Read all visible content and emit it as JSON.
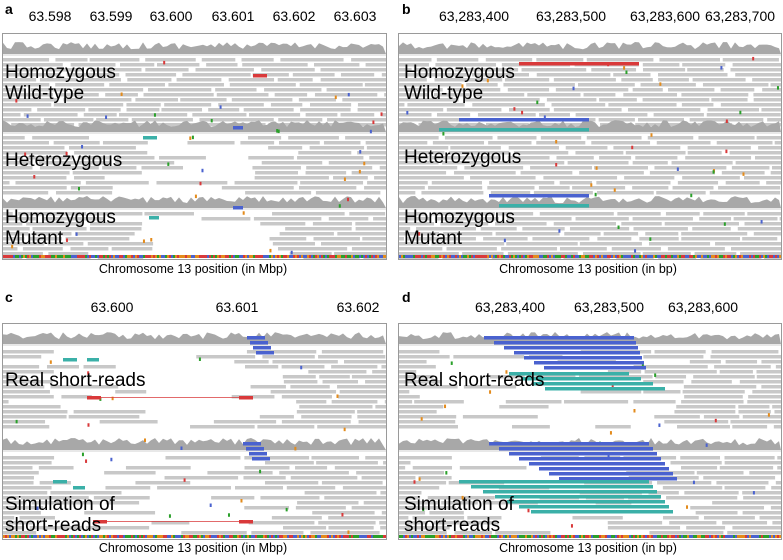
{
  "panels": [
    {
      "id": "a",
      "letter": "a",
      "ticks": [
        "63.598",
        "63.599",
        "63.600",
        "63.601",
        "63.602",
        "63.603"
      ],
      "labels": [
        "Homozygous\nWild-type",
        "Heterozygous",
        "Homozygous\nMutant"
      ],
      "xlabel": "Chromosome 13 position (in Mbp)"
    },
    {
      "id": "b",
      "letter": "b",
      "ticks": [
        "63,283,400",
        "63,283,500",
        "63,283,600",
        "63,283,700"
      ],
      "labels": [
        "Homozygous\nWild-type",
        "Heterozygous",
        "Homozygous\nMutant"
      ],
      "xlabel": "Chromosome 13 position (in bp)"
    },
    {
      "id": "c",
      "letter": "c",
      "ticks": [
        "63.600",
        "63.601",
        "63.602"
      ],
      "labels": [
        "Real short-reads",
        "Simulation of\nshort-reads"
      ],
      "xlabel": "Chromosome 13 position (in Mbp)"
    },
    {
      "id": "d",
      "letter": "d",
      "ticks": [
        "63,283,400",
        "63,283,500",
        "63,283,600"
      ],
      "labels": [
        "Real short-reads",
        "Simulation of\nshort-reads"
      ],
      "xlabel": "Chromosome 13 position (in bp)"
    }
  ],
  "colors": {
    "read": "#c8c8c8",
    "coverage": "#a8a8a8",
    "reverse": "#4a62cf",
    "teal": "#3bb0a8",
    "red": "#d9393a",
    "frame": "#9a9a9a"
  }
}
